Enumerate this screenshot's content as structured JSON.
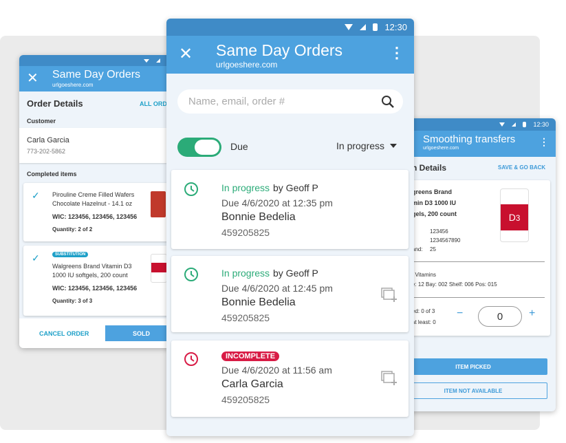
{
  "left": {
    "title": "Same Day Orders",
    "url": "urlgoeshere.com",
    "section": "Order Details",
    "all_orders": "ALL ORDERS",
    "customer_label": "Customer",
    "customer_name": "Carla Garcia",
    "customer_phone": "773-202-5862",
    "completed_label": "Completed items",
    "items": [
      {
        "name1": "Pirouline Creme Filled Wafers",
        "name2": "Chocolate Hazelnut  - 14.1 oz",
        "wic": "WIC: 123456, 123456, 123456",
        "qty": "Quantity: 2 of 2",
        "badge": ""
      },
      {
        "name1": "Walgreens Brand Vitamin D3",
        "name2": "1000 IU softgels, 200 count",
        "wic": "WIC: 123456, 123456, 123456",
        "qty": "Quantity: 3 of 3",
        "badge": "SUBSTITUTION"
      }
    ],
    "cancel": "CANCEL ORDER",
    "sold": "SOLD"
  },
  "center": {
    "time": "12:30",
    "title": "Same Day Orders",
    "url": "urlgoeshere.com",
    "search_placeholder": "Name, email, order #",
    "toggle_label": "Due",
    "toggle_on": true,
    "filter": "In progress",
    "orders": [
      {
        "status": "In progress",
        "by": " by Geoff P",
        "due": "Due 4/6/2020 at 12:35 pm",
        "name": "Bonnie Bedelia",
        "number": "459205825",
        "incomplete": false
      },
      {
        "status": "In progress",
        "by": " by Geoff P",
        "due": "Due 4/6/2020 at 12:45 pm",
        "name": "Bonnie Bedelia",
        "number": "459205825",
        "incomplete": false
      },
      {
        "status": "INCOMPLETE",
        "by": "",
        "due": "Due 4/6/2020 at 11:56 am",
        "name": "Carla Garcia",
        "number": "459205825",
        "incomplete": true
      }
    ]
  },
  "right": {
    "time": "12:30",
    "title": "Smoothing transfers",
    "url": "urlgoeshere.com",
    "section": "n Details",
    "save": "SAVE & GO BACK",
    "name1": "greens Brand",
    "name2": "min D3 1000 IU",
    "name3": "gels, 200 count",
    "v1": "123456",
    "l2": ":",
    "v2": "1234567890",
    "l3": "and:",
    "v3": "25",
    "dept": ": Vitamins",
    "loc": "e: 12  Bay: 002  Shelf: 006  Pos: 015",
    "picked": "ed: 0 of 3",
    "atleast": " at least: 0",
    "qty": "0",
    "item_picked": "ITEM PICKED",
    "not_available": "ITEM NOT AVAILABLE"
  },
  "colors": {
    "header": "#4da2df",
    "status_bar": "#3f8bc7",
    "green": "#2bab78",
    "red": "#d81b45",
    "accent": "#1ea0c8"
  }
}
